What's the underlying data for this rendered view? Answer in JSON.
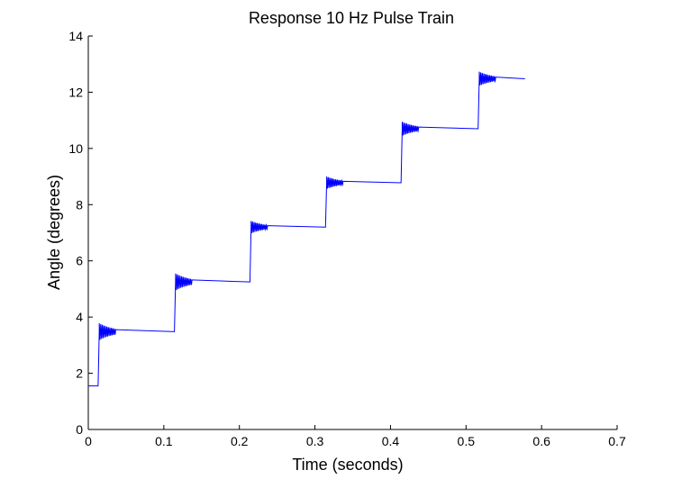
{
  "chart_data": {
    "type": "line",
    "title": "Response 10 Hz Pulse Train",
    "xlabel": "Time (seconds)",
    "ylabel": "Angle (degrees)",
    "xlim": [
      0,
      0.7
    ],
    "ylim": [
      0,
      14
    ],
    "xticks": [
      0,
      0.1,
      0.2,
      0.3,
      0.4,
      0.5,
      0.6,
      0.7
    ],
    "xtick_labels": [
      "0",
      "0.1",
      "0.2",
      "0.3",
      "0.4",
      "0.5",
      "0.6",
      "0.7"
    ],
    "yticks": [
      0,
      2,
      4,
      6,
      8,
      10,
      12,
      14
    ],
    "ytick_labels": [
      "0",
      "2",
      "4",
      "6",
      "8",
      "10",
      "12",
      "14"
    ],
    "grid": false,
    "legend": "none",
    "series_color": "#0000ff",
    "pulse_times": [
      0.013,
      0.114,
      0.214,
      0.314,
      0.414,
      0.516
    ],
    "step_levels": [
      1.55,
      3.48,
      5.25,
      7.2,
      8.78,
      10.7,
      12.48
    ],
    "ringing_amplitude": [
      0.3,
      0.3,
      0.22,
      0.22,
      0.25,
      0.25
    ],
    "ringing_duration": 0.022,
    "ringing_period": 0.002,
    "end_time": 0.578
  }
}
